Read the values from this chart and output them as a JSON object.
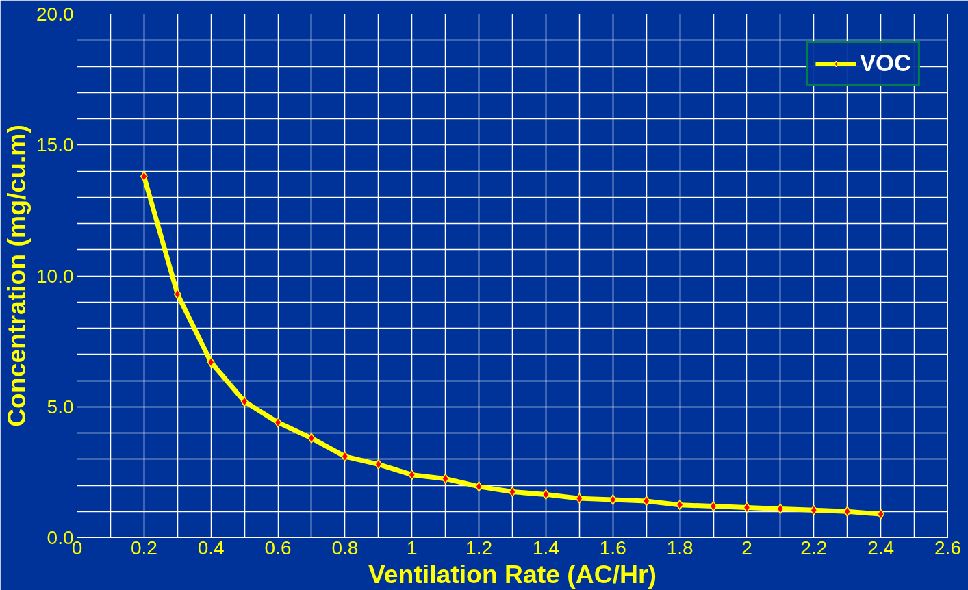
{
  "chart_data": {
    "type": "line",
    "xlabel": "Ventilation Rate (AC/Hr)",
    "ylabel": "Concentration (mg/cu.m)",
    "x": [
      0.2,
      0.3,
      0.4,
      0.5,
      0.6,
      0.7,
      0.8,
      0.9,
      1.0,
      1.1,
      1.2,
      1.3,
      1.4,
      1.5,
      1.6,
      1.7,
      1.8,
      1.9,
      2.0,
      2.1,
      2.2,
      2.3,
      2.4
    ],
    "series": [
      {
        "name": "VOC",
        "color": "#ffff00",
        "values": [
          13.8,
          9.3,
          6.7,
          5.2,
          4.4,
          3.8,
          3.1,
          2.8,
          2.4,
          2.25,
          1.95,
          1.75,
          1.65,
          1.5,
          1.45,
          1.4,
          1.25,
          1.2,
          1.15,
          1.1,
          1.05,
          1.0,
          0.9
        ]
      }
    ],
    "xlim": [
      0,
      2.6
    ],
    "ylim": [
      0,
      20
    ],
    "xticks": [
      0,
      {
        "value": 0.1,
        "label": null
      },
      0.2,
      {
        "value": 0.3,
        "label": null
      },
      0.4,
      {
        "value": 0.5,
        "label": null
      },
      0.6,
      {
        "value": 0.7,
        "label": null
      },
      0.8,
      {
        "value": 0.9,
        "label": null
      },
      1,
      {
        "value": 1.1,
        "label": null
      },
      1.2,
      {
        "value": 1.3,
        "label": null
      },
      1.4,
      {
        "value": 1.5,
        "label": null
      },
      1.6,
      {
        "value": 1.7,
        "label": null
      },
      1.8,
      {
        "value": 1.9,
        "label": null
      },
      2,
      {
        "value": 2.1,
        "label": null
      },
      2.2,
      {
        "value": 2.3,
        "label": null
      },
      2.4,
      {
        "value": 2.5,
        "label": null
      },
      2.6
    ],
    "yticks": [
      {
        "value": 0,
        "label": "0.0"
      },
      {
        "value": 1,
        "label": null
      },
      {
        "value": 2,
        "label": null
      },
      {
        "value": 3,
        "label": null
      },
      {
        "value": 4,
        "label": null
      },
      {
        "value": 5,
        "label": "5.0"
      },
      {
        "value": 6,
        "label": null
      },
      {
        "value": 7,
        "label": null
      },
      {
        "value": 8,
        "label": null
      },
      {
        "value": 9,
        "label": null
      },
      {
        "value": 10,
        "label": "10.0"
      },
      {
        "value": 11,
        "label": null
      },
      {
        "value": 12,
        "label": null
      },
      {
        "value": 13,
        "label": null
      },
      {
        "value": 14,
        "label": null
      },
      {
        "value": 15,
        "label": "15.0"
      },
      {
        "value": 16,
        "label": null
      },
      {
        "value": 17,
        "label": null
      },
      {
        "value": 18,
        "label": null
      },
      {
        "value": 19,
        "label": null
      },
      {
        "value": 20,
        "label": "20.0"
      }
    ],
    "grid": true,
    "legend": "top right",
    "marker": "diamond",
    "line_style": "solid"
  }
}
